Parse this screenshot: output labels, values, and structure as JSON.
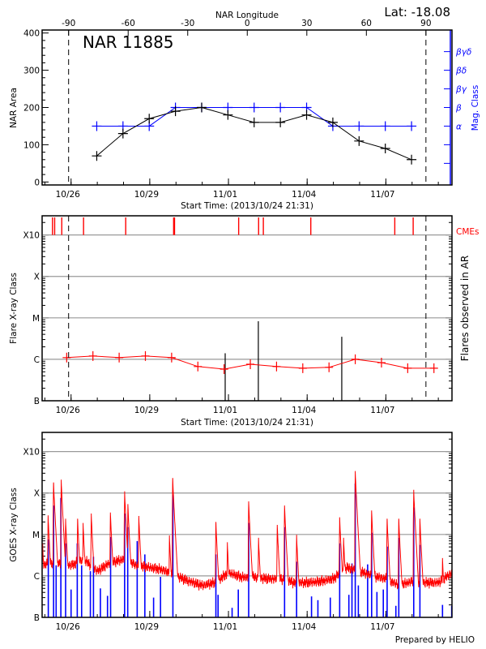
{
  "header": {
    "lat_label": "Lat: -18.08",
    "region_title": "NAR 11885",
    "prepared_by": "Prepared by HELIO"
  },
  "colors": {
    "area": "#000000",
    "mag_class": "#0000ff",
    "flare_class": "#ff0000",
    "cme": "#ff0000",
    "goes_long": "#ff0000",
    "goes_short": "#0000ff",
    "grid": "#999999"
  },
  "chart_data": [
    {
      "type": "line",
      "title": "NAR 11885",
      "xlabel": "Start Time: (2013/10/24 21:31)",
      "ylabel": "NAR Area",
      "y2label": "Mag. Class",
      "x_top_label": "NAR Longitude",
      "x_top_ticks": [
        -90,
        -60,
        -30,
        0,
        30,
        60,
        90
      ],
      "x_top_lim_dates": [
        "2013-10-25T21:45",
        "2013-11-08T12:40"
      ],
      "xlim": [
        "2013-10-24T21:31",
        "2013-11-09T12:30"
      ],
      "x_ticks": [
        {
          "date": "2013-10-26T00:00",
          "label": "10/26"
        },
        {
          "date": "2013-10-29T00:00",
          "label": "10/29"
        },
        {
          "date": "2013-11-01T00:00",
          "label": "11/01"
        },
        {
          "date": "2013-11-04T00:00",
          "label": "11/04"
        },
        {
          "date": "2013-11-07T00:00",
          "label": "11/07"
        }
      ],
      "ylim": [
        -8,
        408
      ],
      "y_ticks": [
        0,
        100,
        200,
        300,
        400
      ],
      "y2_categories": [
        "",
        "",
        "α",
        "β",
        "βγ",
        "βδ",
        "βγδ"
      ],
      "limb_lines": [
        "2013-10-25T21:45",
        "2013-11-08T12:40"
      ],
      "series": [
        {
          "key": "area",
          "x": [
            "2013-10-26T23:30",
            "2013-10-27T23:30",
            "2013-10-28T23:30",
            "2013-10-29T23:30",
            "2013-10-30T23:30",
            "2013-10-31T23:30",
            "2013-11-01T23:30",
            "2013-11-02T23:30",
            "2013-11-03T23:30",
            "2013-11-04T23:30",
            "2013-11-05T23:30",
            "2013-11-06T23:30",
            "2013-11-07T23:30"
          ],
          "values": [
            70,
            130,
            170,
            190,
            200,
            180,
            160,
            160,
            180,
            160,
            110,
            90,
            60
          ]
        },
        {
          "key": "mag_class",
          "x": [
            "2013-10-26T23:30",
            "2013-10-27T23:30",
            "2013-10-28T23:30",
            "2013-10-29T23:30",
            "2013-10-30T23:30",
            "2013-10-31T23:30",
            "2013-11-01T23:30",
            "2013-11-02T23:30",
            "2013-11-03T23:30",
            "2013-11-04T23:30",
            "2013-11-05T23:30",
            "2013-11-06T23:30",
            "2013-11-07T23:30"
          ],
          "values": [
            "α",
            "α",
            "α",
            "β",
            "β",
            "β",
            "β",
            "β",
            "β",
            "α",
            "α",
            "α",
            "α"
          ]
        }
      ]
    },
    {
      "type": "line",
      "xlabel": "Start Time: (2013/10/24 21:31)",
      "ylabel": "Flare X-ray Class",
      "y2label": "Flares observed in AR",
      "cme_label": "CMEs",
      "yscale": "log",
      "ylim": [
        "B1.0",
        "X29"
      ],
      "y_ticks": [
        {
          "class": "B1.0",
          "label": "B"
        },
        {
          "class": "C1.0",
          "label": "C"
        },
        {
          "class": "M1.0",
          "label": "M"
        },
        {
          "class": "X1.0",
          "label": "X"
        },
        {
          "class": "X10",
          "label": "X10"
        }
      ],
      "grid": true,
      "limb_lines": [
        "2013-10-25T21:45",
        "2013-11-08T12:40"
      ],
      "series": [
        {
          "key": "flare_class",
          "x": [
            "2013-10-25T20:00",
            "2013-10-26T20:00",
            "2013-10-27T20:00",
            "2013-10-28T20:00",
            "2013-10-29T20:00",
            "2013-10-30T20:00",
            "2013-10-31T20:00",
            "2013-11-01T20:00",
            "2013-11-02T20:00",
            "2013-11-03T20:00",
            "2013-11-04T20:00",
            "2013-11-05T20:00",
            "2013-11-06T20:00",
            "2013-11-07T20:00",
            "2013-11-08T20:00"
          ],
          "values": [
            "C1.1",
            "C1.2",
            "C1.1",
            "C1.2",
            "C1.1",
            "B6.7",
            "B5.8",
            "B7.6",
            "B6.7",
            "B6.1",
            "B6.4",
            "C1.0",
            "B8.3",
            "B6.1",
            "B6.1"
          ]
        }
      ],
      "flares_observed": [
        {
          "date": "2013-10-31T21:00",
          "class": "C1.4"
        },
        {
          "date": "2013-11-02T03:20",
          "class": "C8.3"
        },
        {
          "date": "2013-11-05T07:40",
          "class": "C3.5"
        }
      ],
      "cmes": [
        "2013-10-25T07:00",
        "2013-10-25T09:00",
        "2013-10-25T15:30",
        "2013-10-26T11:25",
        "2013-10-28T02:00",
        "2013-10-29T21:50",
        "2013-10-29T22:40",
        "2013-11-01T09:20",
        "2013-11-02T03:35",
        "2013-11-02T07:55",
        "2013-11-04T03:20",
        "2013-11-07T08:10",
        "2013-11-08T01:00"
      ]
    },
    {
      "type": "line",
      "ylabel": "GOES X-ray Class",
      "yscale": "log",
      "ylim": [
        "B1.0",
        "X29"
      ],
      "y_ticks": [
        {
          "class": "B1.0",
          "label": "B"
        },
        {
          "class": "C1.0",
          "label": "C"
        },
        {
          "class": "M1.0",
          "label": "M"
        },
        {
          "class": "X1.0",
          "label": "X"
        },
        {
          "class": "X10",
          "label": "X10"
        }
      ],
      "grid": true,
      "goes_long_background": [
        [
          "2013-10-24T21:31",
          "C1.8"
        ],
        [
          "2013-10-25T12:00",
          "C2.1"
        ],
        [
          "2013-10-26T00:00",
          "C1.8"
        ],
        [
          "2013-10-26T12:00",
          "C2.5"
        ],
        [
          "2013-10-27T00:00",
          "C1.3"
        ],
        [
          "2013-10-27T12:00",
          "C2.1"
        ],
        [
          "2013-10-28T00:00",
          "C2.5"
        ],
        [
          "2013-10-28T12:00",
          "C1.8"
        ],
        [
          "2013-10-29T00:00",
          "C1.6"
        ],
        [
          "2013-10-29T12:00",
          "C1.4"
        ],
        [
          "2013-10-30T00:00",
          "C1.0"
        ],
        [
          "2013-10-30T12:00",
          "B7.4"
        ],
        [
          "2013-10-31T00:00",
          "B5.9"
        ],
        [
          "2013-10-31T12:00",
          "B6.9"
        ],
        [
          "2013-11-01T00:00",
          "C1.2"
        ],
        [
          "2013-11-01T12:00",
          "B9.3"
        ],
        [
          "2013-11-02T00:00",
          "B9.3"
        ],
        [
          "2013-11-02T12:00",
          "B8.5"
        ],
        [
          "2013-11-03T00:00",
          "B8.5"
        ],
        [
          "2013-11-03T12:00",
          "B6.9"
        ],
        [
          "2013-11-04T00:00",
          "B6.9"
        ],
        [
          "2013-11-04T12:00",
          "B7.4"
        ],
        [
          "2013-11-05T00:00",
          "B8.5"
        ],
        [
          "2013-11-05T12:00",
          "C1.6"
        ],
        [
          "2013-11-06T00:00",
          "C1.3"
        ],
        [
          "2013-11-06T12:00",
          "C1.0"
        ],
        [
          "2013-11-07T00:00",
          "B8.5"
        ],
        [
          "2013-11-07T12:00",
          "B5.9"
        ],
        [
          "2013-11-08T00:00",
          "B7.4"
        ],
        [
          "2013-11-08T12:00",
          "B6.9"
        ],
        [
          "2013-11-09T00:00",
          "B6.9"
        ],
        [
          "2013-11-09T12:30",
          "C1.2"
        ]
      ],
      "goes_long_peaks": [
        [
          "2013-10-24T22:00",
          "C6.1"
        ],
        [
          "2013-10-25T03:00",
          "M2.9"
        ],
        [
          "2013-10-25T08:00",
          "X1.8"
        ],
        [
          "2013-10-25T15:00",
          "X2.1"
        ],
        [
          "2013-10-25T19:00",
          "M2.4"
        ],
        [
          "2013-10-26T06:00",
          "M2.4"
        ],
        [
          "2013-10-26T11:00",
          "M1.9"
        ],
        [
          "2013-10-26T18:30",
          "M3.2"
        ],
        [
          "2013-10-27T12:00",
          "M3.4"
        ],
        [
          "2013-10-28T01:00",
          "X1.1"
        ],
        [
          "2013-10-28T04:00",
          "M5.4"
        ],
        [
          "2013-10-28T14:00",
          "M2.8"
        ],
        [
          "2013-10-29T18:00",
          "C9.5"
        ],
        [
          "2013-10-29T21:00",
          "X2.3"
        ],
        [
          "2013-10-31T12:30",
          "M2.0"
        ],
        [
          "2013-10-31T23:00",
          "C6.5"
        ],
        [
          "2013-11-01T18:30",
          "M6.3"
        ],
        [
          "2013-11-02T03:30",
          "C8.3"
        ],
        [
          "2013-11-02T20:40",
          "M1.7"
        ],
        [
          "2013-11-03T03:20",
          "M5.0"
        ],
        [
          "2013-11-03T14:20",
          "C9.8"
        ],
        [
          "2013-11-05T05:45",
          "M2.6"
        ],
        [
          "2013-11-05T09:20",
          "C8.3"
        ],
        [
          "2013-11-05T20:00",
          "X3.4"
        ],
        [
          "2013-11-06T11:00",
          "M3.8"
        ],
        [
          "2013-11-07T01:10",
          "M2.4"
        ],
        [
          "2013-11-07T11:50",
          "M2.4"
        ],
        [
          "2013-11-08T01:30",
          "X1.2"
        ],
        [
          "2013-11-08T07:10",
          "M2.4"
        ],
        [
          "2013-11-09T03:50",
          "C2.7"
        ]
      ],
      "goes_short_peaks": [
        [
          "2013-10-25T03:10",
          "C7.6"
        ],
        [
          "2013-10-25T08:00",
          "M5.0"
        ],
        [
          "2013-10-25T10:20",
          "C1.8"
        ],
        [
          "2013-10-25T14:40",
          "M7.6"
        ],
        [
          "2013-10-25T19:00",
          "C6.1"
        ],
        [
          "2013-10-26T00:00",
          "B4.7"
        ],
        [
          "2013-10-26T05:40",
          "C6.1"
        ],
        [
          "2013-10-26T09:40",
          "C1.8"
        ],
        [
          "2013-10-26T17:40",
          "C1.3"
        ],
        [
          "2013-10-26T20:30",
          "C2.9"
        ],
        [
          "2013-10-27T02:50",
          "B5.0"
        ],
        [
          "2013-10-27T09:20",
          "B3.3"
        ],
        [
          "2013-10-27T12:10",
          "C8.7"
        ],
        [
          "2013-10-28T01:00",
          "M3.2"
        ],
        [
          "2013-10-28T03:50",
          "M1.5"
        ],
        [
          "2013-10-28T12:30",
          "C6.9"
        ],
        [
          "2013-10-28T19:30",
          "C3.3"
        ],
        [
          "2013-10-29T03:30",
          "B3.0"
        ],
        [
          "2013-10-29T09:50",
          "B9.5"
        ],
        [
          "2013-10-29T21:10",
          "M9.1"
        ],
        [
          "2013-10-31T12:30",
          "C3.3"
        ],
        [
          "2013-10-31T14:30",
          "B3.5"
        ],
        [
          "2013-11-01T03:20",
          "B1.7"
        ],
        [
          "2013-11-01T09:00",
          "B4.7"
        ],
        [
          "2013-11-01T18:30",
          "M1.9"
        ],
        [
          "2013-11-03T03:20",
          "M1.5"
        ],
        [
          "2013-11-03T14:20",
          "C2.2"
        ],
        [
          "2013-11-04T04:00",
          "B3.2"
        ],
        [
          "2013-11-04T09:50",
          "B2.6"
        ],
        [
          "2013-11-04T21:10",
          "B3.0"
        ],
        [
          "2013-11-05T05:45",
          "C6.1"
        ],
        [
          "2013-11-05T14:10",
          "B3.5"
        ],
        [
          "2013-11-05T17:00",
          "C2.0"
        ],
        [
          "2013-11-05T20:00",
          "X1.7"
        ],
        [
          "2013-11-05T22:50",
          "B5.9"
        ],
        [
          "2013-11-06T07:20",
          "C1.9"
        ],
        [
          "2013-11-06T11:00",
          "M1.1"
        ],
        [
          "2013-11-06T15:50",
          "B4.1"
        ],
        [
          "2013-11-06T21:40",
          "B4.7"
        ],
        [
          "2013-11-07T01:10",
          "C5.1"
        ],
        [
          "2013-11-07T09:10",
          "B1.9"
        ],
        [
          "2013-11-07T11:50",
          "C8.3"
        ],
        [
          "2013-11-08T01:30",
          "M4.5"
        ],
        [
          "2013-11-08T07:10",
          "C5.6"
        ],
        [
          "2013-11-09T03:50",
          "B2.0"
        ],
        [
          "2013-11-09T12:15",
          "B1.9"
        ]
      ]
    }
  ]
}
